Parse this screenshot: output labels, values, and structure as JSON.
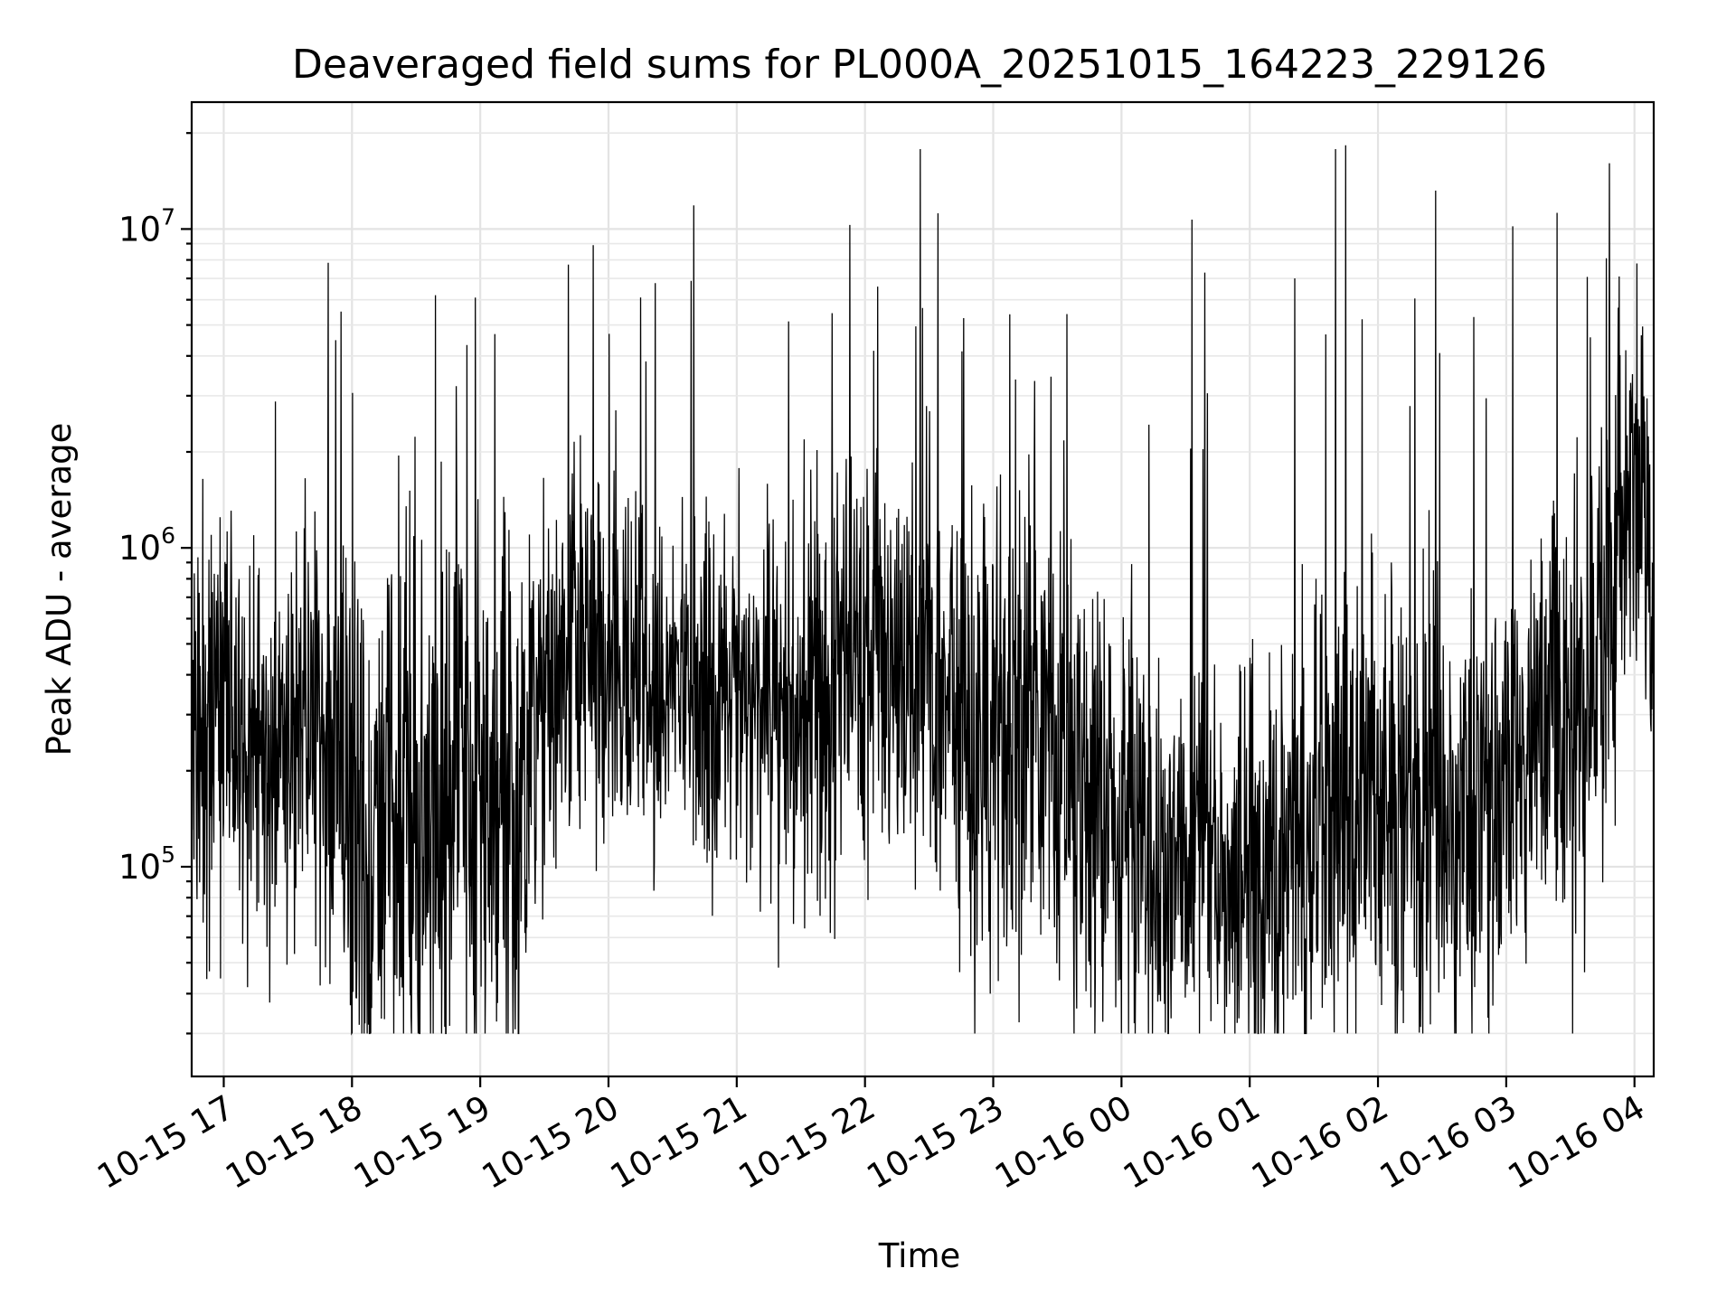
{
  "chart_data": {
    "type": "line",
    "title": "Deaveraged field sums for PL000A_20251015_164223_229126",
    "xlabel": "Time",
    "ylabel": "Peak ADU - average",
    "yscale": "log",
    "ylim": [
      22000,
      25000000
    ],
    "xlim_hours": [
      -0.25,
      11.15
    ],
    "x_tick_hours": [
      0,
      1,
      2,
      3,
      4,
      5,
      6,
      7,
      8,
      9,
      10,
      11
    ],
    "x_tick_labels": [
      "10-15 17",
      "10-15 18",
      "10-15 19",
      "10-15 20",
      "10-15 21",
      "10-15 22",
      "10-15 23",
      "10-16 00",
      "10-16 01",
      "10-16 02",
      "10-16 03",
      "10-16 04"
    ],
    "y_major_ticks": [
      {
        "value": 100000,
        "base": "10",
        "exp": "5"
      },
      {
        "value": 1000000,
        "base": "10",
        "exp": "6"
      },
      {
        "value": 10000000,
        "base": "10",
        "exp": "7"
      }
    ],
    "grid": true,
    "line_color": "#000000",
    "series": [
      {
        "name": "deaveraged field sum",
        "x_hours": [
          -0.25,
          0.25,
          0.8,
          1.1,
          1.45,
          1.8,
          2.1,
          2.3,
          2.45,
          2.8,
          3.2,
          3.6,
          4.0,
          4.4,
          4.8,
          5.0,
          5.2,
          5.5,
          5.7,
          5.9,
          6.1,
          6.5,
          6.9,
          7.2,
          7.6,
          8.0,
          8.4,
          8.8,
          9.1,
          9.5,
          9.9,
          10.1,
          10.4,
          10.7,
          10.9,
          11.0,
          11.15
        ],
        "median_values": [
          280000,
          280000,
          260000,
          140000,
          150000,
          180000,
          140000,
          110000,
          350000,
          430000,
          400000,
          350000,
          330000,
          310000,
          380000,
          420000,
          400000,
          380000,
          260000,
          220000,
          300000,
          230000,
          130000,
          110000,
          100000,
          95000,
          110000,
          180000,
          150000,
          160000,
          150000,
          240000,
          330000,
          380000,
          1000000,
          1500000,
          900000
        ],
        "spread_decades": [
          0.52,
          0.5,
          0.55,
          0.6,
          0.6,
          0.62,
          0.62,
          0.62,
          0.45,
          0.42,
          0.4,
          0.38,
          0.38,
          0.45,
          0.45,
          0.5,
          0.5,
          0.5,
          0.52,
          0.55,
          0.58,
          0.55,
          0.5,
          0.48,
          0.48,
          0.5,
          0.5,
          0.55,
          0.55,
          0.5,
          0.45,
          0.45,
          0.5,
          0.55,
          0.5,
          0.45,
          0.45
        ],
        "notable_peaks": [
          {
            "hour": 1.65,
            "value": 6200000
          },
          {
            "hour": 2.88,
            "value": 8900000
          },
          {
            "hour": 3.25,
            "value": 6100000
          },
          {
            "hour": 4.88,
            "value": 10300000
          },
          {
            "hour": 5.1,
            "value": 6600000
          },
          {
            "hour": 5.43,
            "value": 17800000
          },
          {
            "hour": 5.57,
            "value": 11200000
          },
          {
            "hour": 6.13,
            "value": 5400000
          },
          {
            "hour": 7.55,
            "value": 10700000
          },
          {
            "hour": 7.65,
            "value": 7300000
          },
          {
            "hour": 8.35,
            "value": 7000000
          },
          {
            "hour": 8.67,
            "value": 17800000
          },
          {
            "hour": 8.75,
            "value": 18300000
          },
          {
            "hour": 9.45,
            "value": 13200000
          },
          {
            "hour": 10.05,
            "value": 10200000
          },
          {
            "hour": 10.78,
            "value": 8100000
          },
          {
            "hour": 10.88,
            "value": 7100000
          }
        ]
      }
    ]
  }
}
